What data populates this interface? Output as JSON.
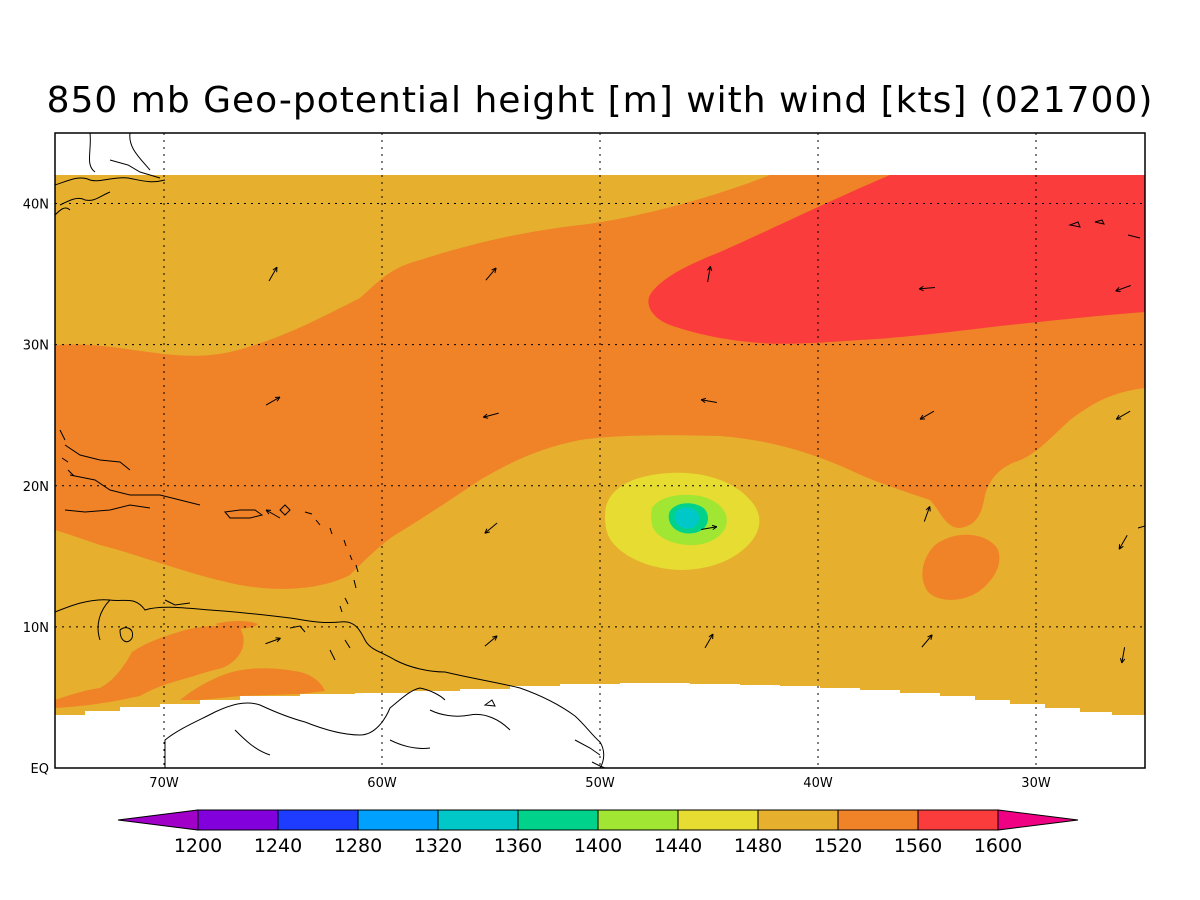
{
  "title": "850 mb Geo-potential height [m] with wind [kts] (021700)",
  "map": {
    "lon_range": [
      -75,
      -25
    ],
    "lat_range": [
      0,
      45
    ],
    "data_lat_top": 42,
    "lon_ticks": [
      {
        "value": -70,
        "label": "70W"
      },
      {
        "value": -60,
        "label": "60W"
      },
      {
        "value": -50,
        "label": "50W"
      },
      {
        "value": -40,
        "label": "40W"
      },
      {
        "value": -30,
        "label": "30W"
      }
    ],
    "lat_ticks": [
      {
        "value": 40,
        "label": "40N"
      },
      {
        "value": 30,
        "label": "30N"
      },
      {
        "value": 20,
        "label": "20N"
      },
      {
        "value": 10,
        "label": "10N"
      },
      {
        "value": 0,
        "label": "EQ"
      }
    ],
    "grid": "dotted"
  },
  "colorbar": {
    "levels": [
      "1200",
      "1240",
      "1280",
      "1320",
      "1360",
      "1400",
      "1440",
      "1480",
      "1520",
      "1560",
      "1600"
    ],
    "colors": [
      "#a000c8",
      "#8200dc",
      "#1e3cff",
      "#00a0ff",
      "#00c8c8",
      "#00d28c",
      "#a0e632",
      "#e6dc32",
      "#e6af2d",
      "#f08228",
      "#fa3c3c",
      "#f00082"
    ]
  },
  "field_colors": {
    "c1440": "#a0e632",
    "c1480": "#e6dc32",
    "c1520": "#e6af2d",
    "c1560": "#f08228",
    "c1600": "#fa3c3c",
    "c1360": "#00c8c8",
    "c1400": "#00d28c"
  },
  "wind_vectors": [
    {
      "lon": -65,
      "lat": 35,
      "dir": 30
    },
    {
      "lon": -55,
      "lat": 35,
      "dir": 40
    },
    {
      "lon": -45,
      "lat": 35,
      "dir": 10
    },
    {
      "lon": -35,
      "lat": 34,
      "dir": 265
    },
    {
      "lon": -26,
      "lat": 34,
      "dir": 250
    },
    {
      "lon": -65,
      "lat": 26,
      "dir": 60
    },
    {
      "lon": -55,
      "lat": 25,
      "dir": 255
    },
    {
      "lon": -45,
      "lat": 26,
      "dir": 280
    },
    {
      "lon": -35,
      "lat": 25,
      "dir": 240
    },
    {
      "lon": -26,
      "lat": 25,
      "dir": 240
    },
    {
      "lon": -65,
      "lat": 18,
      "dir": 300
    },
    {
      "lon": -55,
      "lat": 17,
      "dir": 230
    },
    {
      "lon": -45,
      "lat": 17,
      "dir": 80
    },
    {
      "lon": -35,
      "lat": 18,
      "dir": 20
    },
    {
      "lon": -26,
      "lat": 16,
      "dir": 210
    },
    {
      "lon": -65,
      "lat": 9,
      "dir": 70
    },
    {
      "lon": -55,
      "lat": 9,
      "dir": 50
    },
    {
      "lon": -45,
      "lat": 9,
      "dir": 30
    },
    {
      "lon": -35,
      "lat": 9,
      "dir": 40
    },
    {
      "lon": -26,
      "lat": 8,
      "dir": 190
    }
  ]
}
